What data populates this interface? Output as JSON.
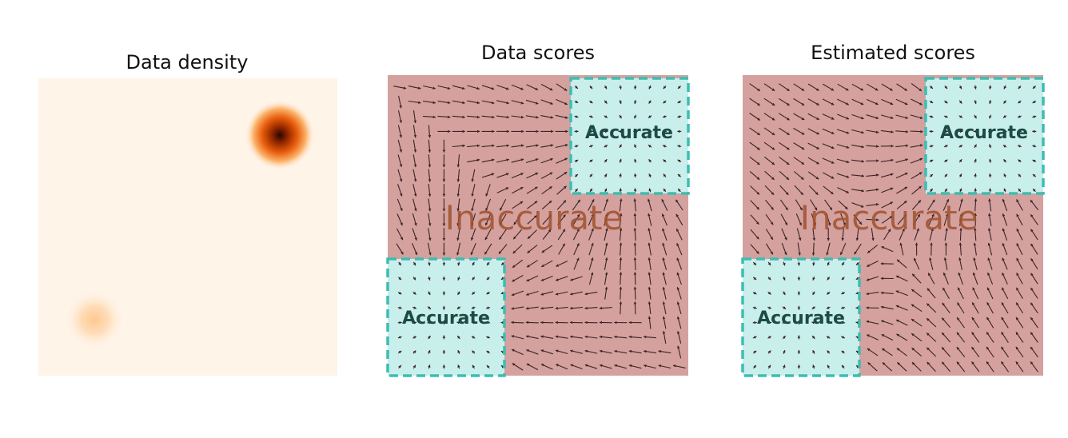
{
  "panels": [
    {
      "id": "density",
      "title": "Data density"
    },
    {
      "id": "data-scores",
      "title": "Data scores",
      "accurate_label": "Accurate",
      "inaccurate_label": "Inaccurate"
    },
    {
      "id": "estimated-scores",
      "title": "Estimated scores",
      "accurate_label": "Accurate",
      "inaccurate_label": "Inaccurate"
    }
  ],
  "colors": {
    "inaccurate_bg": "#d4a19f",
    "accurate_bg": "#c9efec",
    "accurate_border": "#3dbdb2",
    "arrow": "#3a2424",
    "density_bg": "#fff4e8",
    "density_peak": "#3a0a00"
  }
}
